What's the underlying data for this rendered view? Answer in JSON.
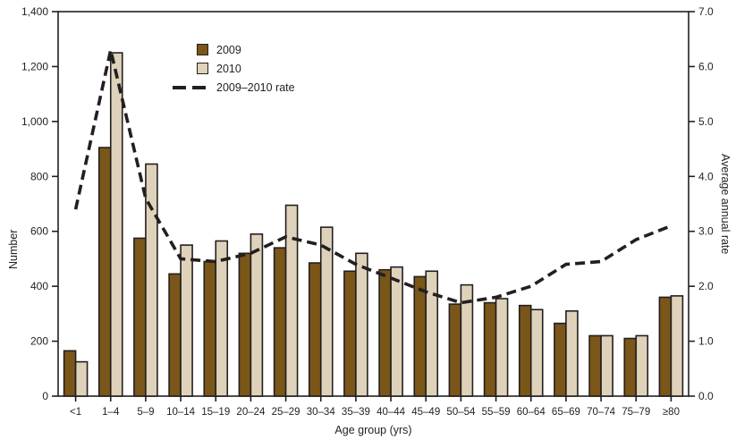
{
  "figure": {
    "background": "#ffffff",
    "axis_color": "#231f20",
    "text_color": "#231f20"
  },
  "legend": {
    "items": [
      {
        "label": "2009",
        "type": "box",
        "swatch_color": "#7a5619"
      },
      {
        "label": "2010",
        "type": "box",
        "swatch_color": "#ded3ba"
      },
      {
        "label": "2009–2010 rate",
        "type": "dashed-line",
        "swatch_color": "#231f20"
      }
    ]
  },
  "chart_data": {
    "type": "bar",
    "subtype": "grouped bars with secondary-axis dashed line",
    "categories": [
      "<1",
      "1–4",
      "5–9",
      "10–14",
      "15–19",
      "20–24",
      "25–29",
      "30–34",
      "35–39",
      "40–44",
      "45–49",
      "50–54",
      "55–59",
      "60–64",
      "65–69",
      "70–74",
      "75–79",
      "≥80"
    ],
    "series": [
      {
        "name": "2009",
        "type": "bar",
        "axis": "left",
        "color": "#7a5619",
        "values": [
          165,
          905,
          575,
          445,
          490,
          520,
          540,
          485,
          455,
          460,
          435,
          335,
          340,
          330,
          265,
          220,
          210,
          360
        ]
      },
      {
        "name": "2010",
        "type": "bar",
        "axis": "left",
        "color": "#ded3ba",
        "values": [
          125,
          1250,
          845,
          550,
          565,
          590,
          695,
          615,
          520,
          470,
          455,
          405,
          355,
          315,
          310,
          220,
          220,
          365
        ]
      },
      {
        "name": "2009–2010 rate",
        "type": "line",
        "style": "dashed",
        "axis": "right",
        "color": "#231f20",
        "values": [
          3.4,
          6.3,
          3.6,
          2.5,
          2.45,
          2.6,
          2.9,
          2.75,
          2.4,
          2.15,
          1.9,
          1.7,
          1.8,
          2.0,
          2.4,
          2.45,
          2.85,
          3.1
        ]
      }
    ],
    "left_axis": {
      "label": "Number",
      "min": 0,
      "max": 1400,
      "ticks": [
        {
          "value": 1400,
          "label": "1,400"
        },
        {
          "value": 1200,
          "label": "1,200"
        },
        {
          "value": 1000,
          "label": "1,000"
        },
        {
          "value": 800,
          "label": "800"
        },
        {
          "value": 600,
          "label": "600"
        },
        {
          "value": 400,
          "label": "400"
        },
        {
          "value": 200,
          "label": "200"
        },
        {
          "value": 0,
          "label": "0"
        }
      ]
    },
    "right_axis": {
      "label": "Average annual rate",
      "min": 0,
      "max": 7,
      "ticks": [
        {
          "value": 7,
          "label": "7.0"
        },
        {
          "value": 6,
          "label": "6.0"
        },
        {
          "value": 5,
          "label": "5.0"
        },
        {
          "value": 4,
          "label": "4.0"
        },
        {
          "value": 3,
          "label": "3.0"
        },
        {
          "value": 2,
          "label": "2.0"
        },
        {
          "value": 1,
          "label": "1.0"
        },
        {
          "value": 0,
          "label": "0.0"
        }
      ]
    },
    "x_axis": {
      "label": "Age group (yrs)"
    },
    "layout": {
      "grid": false,
      "legend_position": "upper-left-inside",
      "frame": "full-box"
    }
  }
}
